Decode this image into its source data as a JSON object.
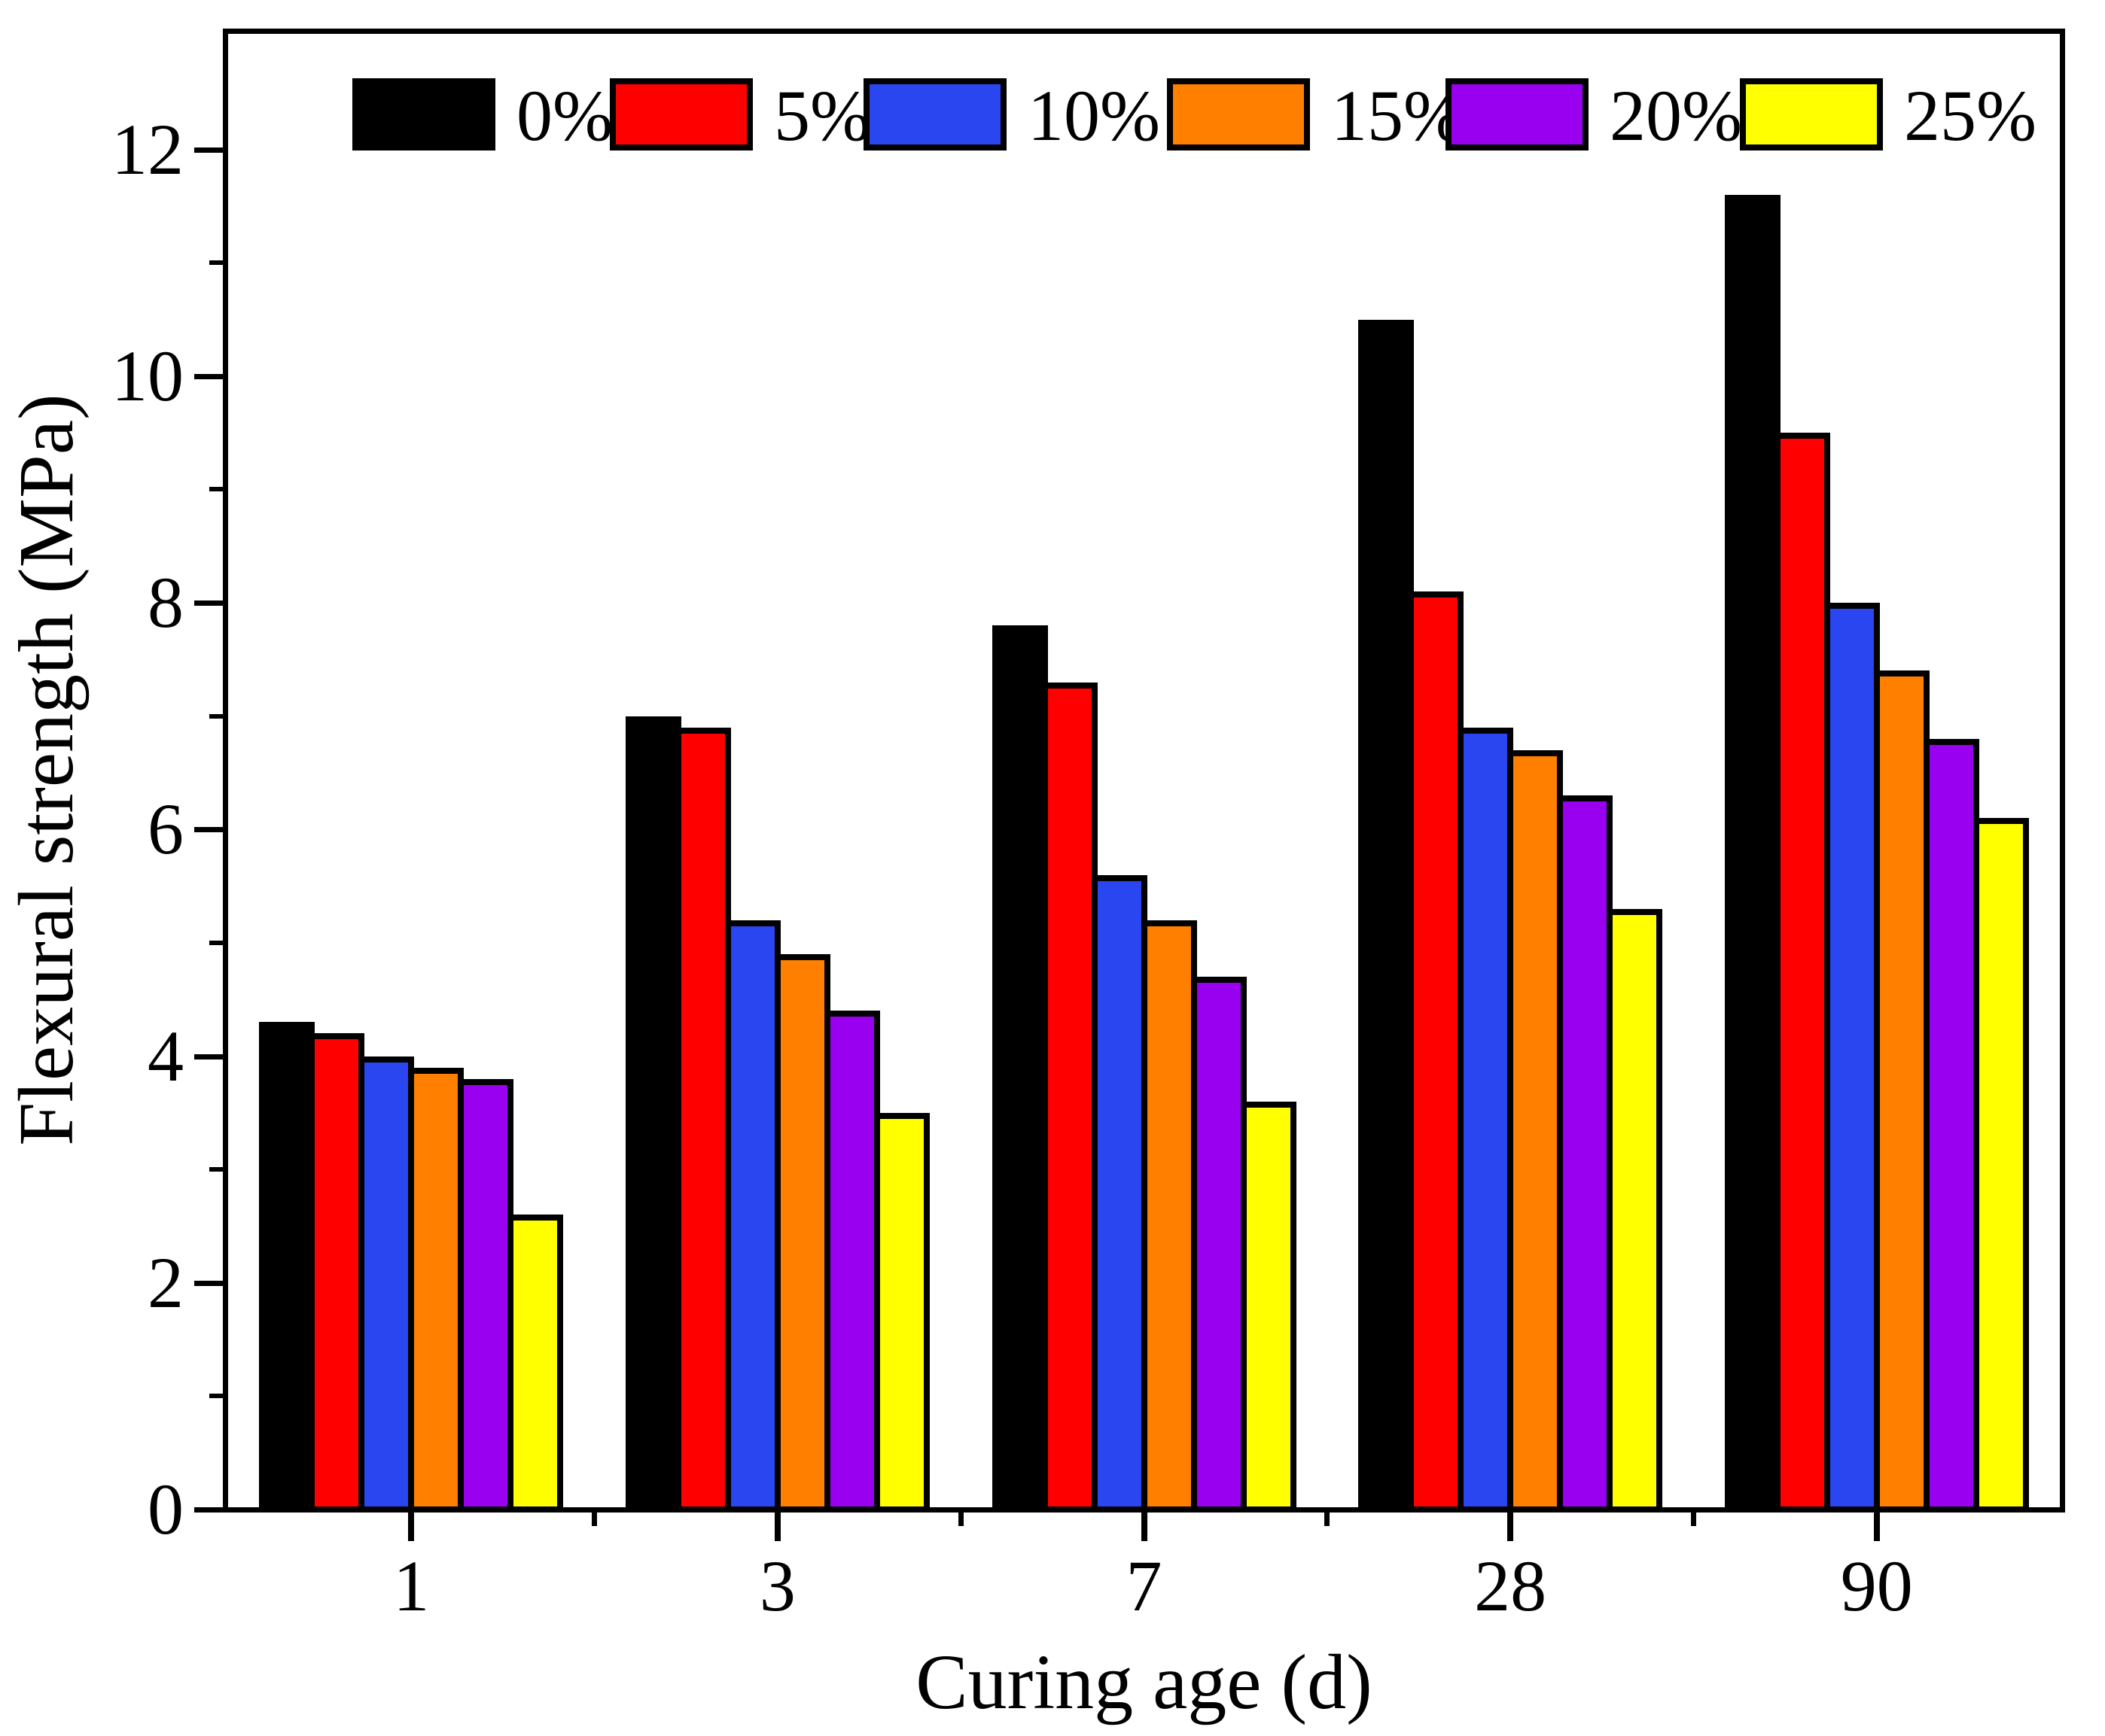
{
  "chart_data": {
    "type": "bar",
    "title": "",
    "xlabel": "Curing age (d)",
    "ylabel": "Flexural strength (MPa)",
    "categories": [
      "1",
      "3",
      "7",
      "28",
      "90"
    ],
    "series": [
      {
        "name": "0%",
        "color": "#000000",
        "values": [
          4.3,
          7.0,
          7.8,
          10.5,
          11.6
        ]
      },
      {
        "name": "5%",
        "color": "#FF0000",
        "values": [
          4.2,
          6.9,
          7.3,
          8.1,
          9.5
        ]
      },
      {
        "name": "10%",
        "color": "#2A46F0",
        "values": [
          4.0,
          5.2,
          5.6,
          6.9,
          8.0
        ]
      },
      {
        "name": "15%",
        "color": "#FF7F00",
        "values": [
          3.9,
          4.9,
          5.2,
          6.7,
          7.4
        ]
      },
      {
        "name": "20%",
        "color": "#9900F0",
        "values": [
          3.8,
          4.4,
          4.7,
          6.3,
          6.8
        ]
      },
      {
        "name": "25%",
        "color": "#FFFF00",
        "values": [
          2.6,
          3.5,
          3.6,
          5.3,
          6.1
        ]
      }
    ],
    "ylim": [
      0,
      13.02
    ],
    "y_ticks": {
      "labels": [
        "0",
        "2",
        "4",
        "6",
        "8",
        "10",
        "12"
      ],
      "values": [
        0,
        2,
        4,
        6,
        8,
        10,
        12
      ],
      "minor": [
        1,
        3,
        5,
        7,
        9,
        11
      ]
    },
    "legend_position": "top",
    "grid": false,
    "bar_outline_color": "#000000"
  }
}
